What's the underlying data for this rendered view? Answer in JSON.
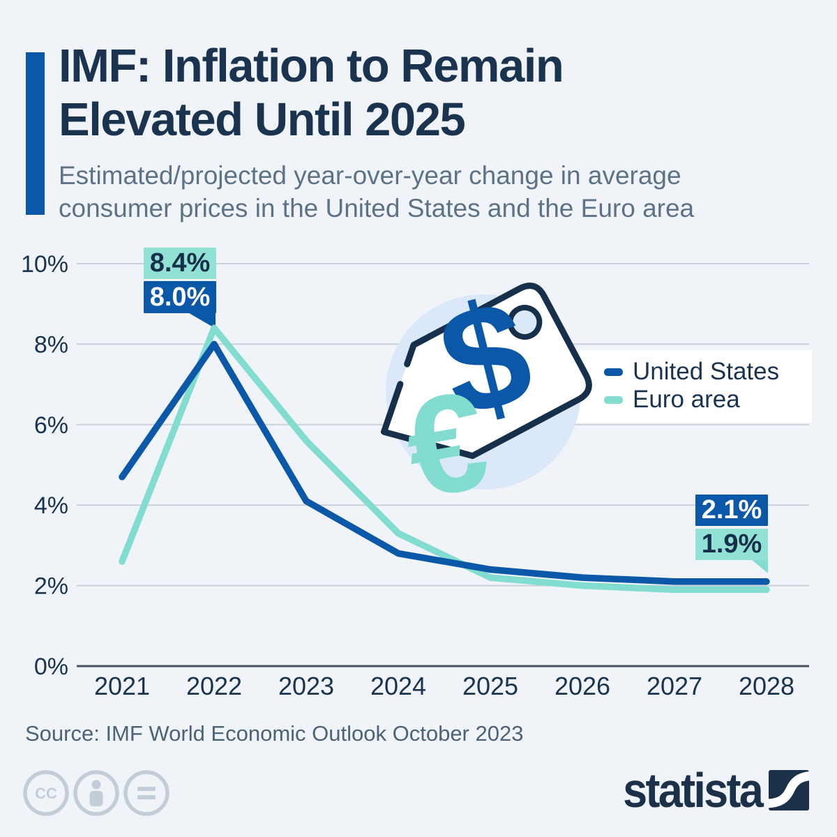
{
  "header": {
    "accent_color": "#0B58A8",
    "title_line1": "IMF: Inflation to Remain",
    "title_line2": "Elevated Until 2025",
    "subtitle_line1": "Estimated/projected year-over-year change in average",
    "subtitle_line2": "consumer prices in the United States and the Euro area"
  },
  "chart_data": {
    "type": "line",
    "x": [
      "2021",
      "2022",
      "2023",
      "2024",
      "2025",
      "2026",
      "2027",
      "2028"
    ],
    "series": [
      {
        "name": "United States",
        "color": "#0B58A8",
        "values": [
          4.7,
          8.0,
          4.1,
          2.8,
          2.4,
          2.2,
          2.1,
          2.1
        ]
      },
      {
        "name": "Euro area",
        "color": "#82DCCF",
        "values": [
          2.6,
          8.4,
          5.6,
          3.3,
          2.2,
          2.0,
          1.9,
          1.9
        ]
      }
    ],
    "yticks": [
      10,
      8,
      6,
      4,
      2,
      0
    ],
    "ytick_suffix": "%",
    "ylim": [
      0,
      10
    ],
    "grid": true,
    "legend_position": "middle-right",
    "annotations": [
      {
        "label": "8.4%",
        "series": "Euro area",
        "x": "2022",
        "value": 8.4
      },
      {
        "label": "8.0%",
        "series": "United States",
        "x": "2022",
        "value": 8.0
      },
      {
        "label": "2.1%",
        "series": "United States",
        "x": "2028",
        "value": 2.1
      },
      {
        "label": "1.9%",
        "series": "Euro area",
        "x": "2028",
        "value": 1.9
      }
    ]
  },
  "illustration": {
    "dollar_glyph": "$",
    "euro_glyph": "€"
  },
  "footer": {
    "source": "Source: IMF World Economic Outlook October 2023",
    "cc_glyph": "CC",
    "license_icons": [
      "cc-icon",
      "attribution-icon",
      "no-derivatives-icon"
    ],
    "brand": "statista"
  },
  "colors": {
    "background": "#F0F4F8",
    "title_navy": "#1A3450",
    "subtitle_gray": "#5E7287",
    "us_blue": "#0B58A8",
    "euro_teal": "#82DCCF",
    "callout_teal_bg": "#91E1D5",
    "gridline": "#C9D1DA",
    "tag_outline": "#16304C",
    "tag_circle": "#DBE8FA",
    "license_gray": "#C2CDD8",
    "brand_navy": "#1B3049"
  }
}
